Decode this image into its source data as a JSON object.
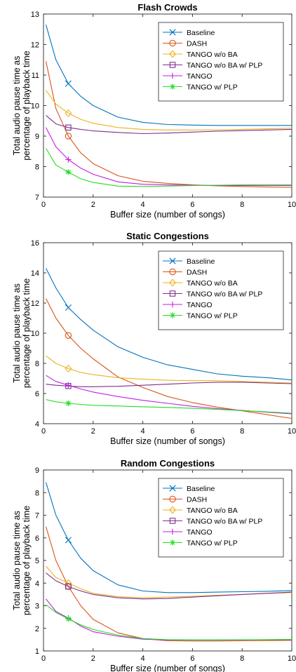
{
  "figure": {
    "xlabel": "Buffer size (number of songs)",
    "ylabel_lines": [
      "Total audio pause time as",
      "percentage of playback time"
    ]
  },
  "colors": {
    "Baseline": "#0072bd",
    "DASH": "#d95319",
    "TANGO w/o BA": "#edb120",
    "TANGO w/o BA w/ PLP": "#7e2f8e",
    "TANGO": "#c21ee0",
    "TANGO w/ PLP": "#22dd22"
  },
  "markers": {
    "Baseline": "x",
    "DASH": "circle",
    "TANGO w/o BA": "diamond",
    "TANGO w/o BA w/ PLP": "square",
    "TANGO": "plus",
    "TANGO w/ PLP": "asterisk"
  },
  "chart_data": [
    {
      "type": "line",
      "title": "Flash Crowds",
      "xlabel": "Buffer size (number of songs)",
      "ylabel": "Total audio pause time as percentage of playback time",
      "xlim": [
        0,
        10
      ],
      "ylim": [
        7,
        13
      ],
      "xticks": [
        0,
        2,
        4,
        6,
        8,
        10
      ],
      "yticks": [
        7,
        8,
        9,
        10,
        11,
        12,
        13
      ],
      "grid": false,
      "legend": "top-right",
      "marker_x": 1,
      "x": [
        0.1,
        0.5,
        1,
        1.5,
        2,
        3,
        4,
        5,
        6,
        7,
        8,
        9,
        10
      ],
      "series": [
        {
          "name": "Baseline",
          "values": [
            12.65,
            11.5,
            10.72,
            10.3,
            10.0,
            9.62,
            9.45,
            9.38,
            9.36,
            9.35,
            9.35,
            9.35,
            9.35
          ]
        },
        {
          "name": "DASH",
          "values": [
            11.45,
            9.9,
            9.0,
            8.45,
            8.1,
            7.7,
            7.52,
            7.45,
            7.4,
            7.37,
            7.35,
            7.33,
            7.32
          ]
        },
        {
          "name": "TANGO w/o BA",
          "values": [
            10.5,
            10.05,
            9.75,
            9.55,
            9.42,
            9.28,
            9.22,
            9.2,
            9.2,
            9.2,
            9.22,
            9.24,
            9.26
          ]
        },
        {
          "name": "TANGO w/o BA w/ PLP",
          "values": [
            9.68,
            9.4,
            9.28,
            9.22,
            9.17,
            9.12,
            9.08,
            9.1,
            9.13,
            9.16,
            9.18,
            9.2,
            9.22
          ]
        },
        {
          "name": "TANGO",
          "values": [
            9.28,
            8.65,
            8.23,
            7.95,
            7.75,
            7.5,
            7.42,
            7.4,
            7.39,
            7.38,
            7.38,
            7.38,
            7.38
          ]
        },
        {
          "name": "TANGO w/ PLP",
          "values": [
            8.6,
            8.05,
            7.82,
            7.6,
            7.48,
            7.36,
            7.35,
            7.36,
            7.38,
            7.39,
            7.4,
            7.4,
            7.4
          ]
        }
      ]
    },
    {
      "type": "line",
      "title": "Static Congestions",
      "xlabel": "Buffer size (number of songs)",
      "ylabel": "Total audio pause time as percentage of playback time",
      "xlim": [
        0,
        10
      ],
      "ylim": [
        4,
        16
      ],
      "xticks": [
        0,
        2,
        4,
        6,
        8,
        10
      ],
      "yticks": [
        4,
        6,
        8,
        10,
        12,
        14,
        16
      ],
      "grid": false,
      "legend": "top-right",
      "marker_x": 1,
      "x": [
        0.1,
        0.5,
        1,
        1.5,
        2,
        3,
        4,
        5,
        6,
        7,
        8,
        9,
        10
      ],
      "series": [
        {
          "name": "Baseline",
          "values": [
            14.3,
            13.0,
            11.7,
            10.9,
            10.2,
            9.1,
            8.4,
            7.9,
            7.6,
            7.3,
            7.15,
            7.05,
            6.9
          ]
        },
        {
          "name": "DASH",
          "values": [
            12.3,
            11.0,
            9.85,
            9.0,
            8.3,
            7.1,
            6.4,
            5.8,
            5.4,
            5.1,
            4.85,
            4.6,
            4.35
          ]
        },
        {
          "name": "TANGO w/o BA",
          "values": [
            8.5,
            8.0,
            7.65,
            7.4,
            7.25,
            7.05,
            6.95,
            6.88,
            6.85,
            6.85,
            6.8,
            6.75,
            6.7
          ]
        },
        {
          "name": "TANGO w/o BA w/ PLP",
          "values": [
            6.62,
            6.55,
            6.5,
            6.45,
            6.45,
            6.48,
            6.55,
            6.62,
            6.7,
            6.75,
            6.75,
            6.7,
            6.65
          ]
        },
        {
          "name": "TANGO",
          "values": [
            7.2,
            6.8,
            6.55,
            6.3,
            6.1,
            5.8,
            5.55,
            5.35,
            5.15,
            5.0,
            4.88,
            4.76,
            4.65
          ]
        },
        {
          "name": "TANGO w/ PLP",
          "values": [
            5.6,
            5.45,
            5.35,
            5.28,
            5.22,
            5.17,
            5.12,
            5.08,
            5.02,
            4.95,
            4.87,
            4.78,
            4.7
          ]
        }
      ]
    },
    {
      "type": "line",
      "title": "Random Congestions",
      "xlabel": "Buffer size (number of songs)",
      "ylabel": "Total audio pause time as percentage of playback time",
      "xlim": [
        0,
        10
      ],
      "ylim": [
        1,
        9
      ],
      "xticks": [
        0,
        2,
        4,
        6,
        8,
        10
      ],
      "yticks": [
        1,
        2,
        3,
        4,
        5,
        6,
        7,
        8,
        9
      ],
      "grid": false,
      "legend": "top-right",
      "marker_x": 1,
      "x": [
        0.1,
        0.5,
        1,
        1.5,
        2,
        3,
        4,
        5,
        6,
        7,
        8,
        9,
        10
      ],
      "series": [
        {
          "name": "Baseline",
          "values": [
            8.45,
            7.0,
            5.9,
            5.1,
            4.55,
            3.92,
            3.65,
            3.58,
            3.58,
            3.6,
            3.62,
            3.64,
            3.67
          ]
        },
        {
          "name": "DASH",
          "values": [
            6.5,
            5.0,
            3.85,
            3.0,
            2.4,
            1.8,
            1.55,
            1.45,
            1.44,
            1.44,
            1.45,
            1.46,
            1.47
          ]
        },
        {
          "name": "TANGO w/o BA",
          "values": [
            4.75,
            4.25,
            4.0,
            3.75,
            3.55,
            3.4,
            3.35,
            3.38,
            3.42,
            3.46,
            3.5,
            3.54,
            3.58
          ]
        },
        {
          "name": "TANGO w/o BA w/ PLP",
          "values": [
            4.45,
            4.1,
            3.85,
            3.65,
            3.5,
            3.35,
            3.3,
            3.32,
            3.38,
            3.44,
            3.5,
            3.55,
            3.6
          ]
        },
        {
          "name": "TANGO",
          "values": [
            3.3,
            2.75,
            2.45,
            2.1,
            1.85,
            1.65,
            1.52,
            1.48,
            1.48,
            1.48,
            1.49,
            1.5,
            1.5
          ]
        },
        {
          "name": "TANGO w/ PLP",
          "values": [
            3.05,
            2.7,
            2.42,
            2.15,
            1.95,
            1.7,
            1.55,
            1.5,
            1.49,
            1.49,
            1.5,
            1.5,
            1.51
          ]
        }
      ]
    }
  ]
}
